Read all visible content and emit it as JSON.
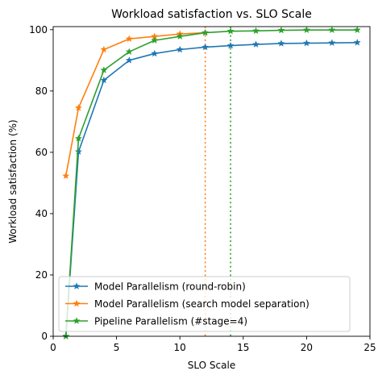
{
  "chart_data": {
    "type": "line",
    "title": "Workload satisfaction vs. SLO Scale",
    "xlabel": "SLO Scale",
    "ylabel": "Workload satisfaction (%)",
    "xlim": [
      0,
      25
    ],
    "ylim": [
      0,
      101
    ],
    "xticks": [
      0,
      5,
      10,
      15,
      20,
      25
    ],
    "yticks": [
      0,
      20,
      40,
      60,
      80,
      100
    ],
    "grid": false,
    "legend_position": "lower-right",
    "series": [
      {
        "name": "Model Parallelism (round-robin)",
        "color": "#1f77b4",
        "marker": "star",
        "x": [
          1,
          2,
          4,
          6,
          8,
          10,
          12,
          14,
          16,
          18,
          20,
          22,
          24
        ],
        "y": [
          0,
          60.2,
          83.5,
          90.0,
          92.2,
          93.5,
          94.3,
          94.8,
          95.2,
          95.5,
          95.6,
          95.7,
          95.8
        ]
      },
      {
        "name": "Model Parallelism (search model separation)",
        "color": "#ff7f0e",
        "marker": "star",
        "x": [
          1,
          2,
          4,
          6,
          8,
          10,
          12
        ],
        "y": [
          52.3,
          74.5,
          93.5,
          97.0,
          97.8,
          98.6,
          99.0
        ]
      },
      {
        "name": "Pipeline Parallelism (#stage=4)",
        "color": "#2ca02c",
        "marker": "star",
        "x": [
          1,
          2,
          4,
          6,
          8,
          10,
          12,
          14,
          16,
          18,
          20,
          22,
          24
        ],
        "y": [
          0,
          64.5,
          86.8,
          92.8,
          96.5,
          97.8,
          99.0,
          99.5,
          99.6,
          99.8,
          99.9,
          99.9,
          99.9
        ]
      }
    ],
    "reference_lines": [
      {
        "x": 12,
        "color": "#ff7f0e",
        "style": "dotted"
      },
      {
        "x": 14,
        "color": "#2ca02c",
        "style": "dotted"
      }
    ]
  }
}
